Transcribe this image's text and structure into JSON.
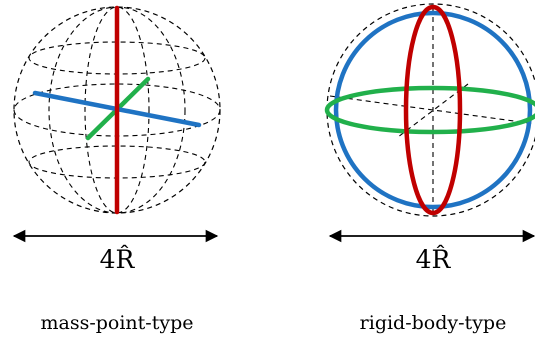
{
  "panels": [
    {
      "caption": "mass-point-type",
      "dimension_label": "4R̂"
    },
    {
      "caption": "rigid-body-type",
      "dimension_label": "4R̂"
    }
  ],
  "colors": {
    "red": "#c00000",
    "blue": "#1f73c3",
    "green": "#21b04b",
    "dashed": "#000000"
  }
}
